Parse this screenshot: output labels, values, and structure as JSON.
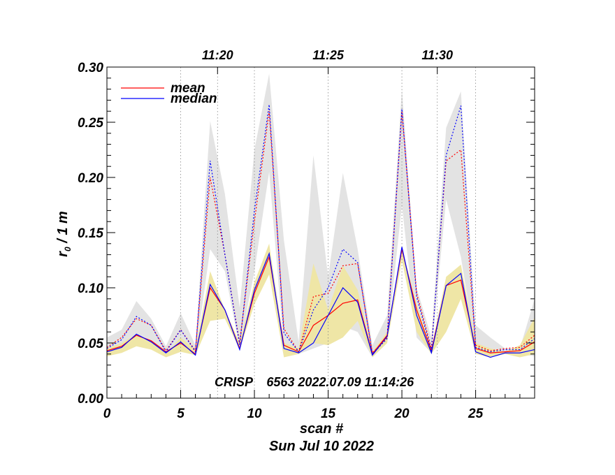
{
  "chart_data": {
    "type": "line",
    "xlabel": "scan #",
    "xlabel2": "Sun Jul 10 2022",
    "ylabel": "r",
    "ylabel_sub": "0",
    "ylabel_rest": " / 1 m",
    "annotation": "CRISP    6563 2022.07.09 11:14:26",
    "xlim": [
      0,
      29
    ],
    "ylim": [
      0,
      0.3
    ],
    "x_ticks": [
      0,
      5,
      10,
      15,
      20,
      25
    ],
    "x_tick_labels": [
      "0",
      "5",
      "10",
      "15",
      "20",
      "25"
    ],
    "y_ticks": [
      0,
      0.05,
      0.1,
      0.15,
      0.2,
      0.25,
      0.3
    ],
    "y_tick_labels": [
      "0.00",
      "0.05",
      "0.10",
      "0.15",
      "0.20",
      "0.25",
      "0.30"
    ],
    "time_ticks": [
      {
        "x": 7.5,
        "label": "11:20"
      },
      {
        "x": 15,
        "label": "11:25"
      },
      {
        "x": 22.4,
        "label": "11:30"
      }
    ],
    "vertical_guides": [
      5,
      7.5,
      10,
      15,
      20,
      22.4,
      25
    ],
    "legend": {
      "position": "top-left",
      "entries": [
        {
          "name": "mean",
          "color": "#ff0000"
        },
        {
          "name": "median",
          "color": "#0000ff"
        }
      ]
    },
    "x": [
      0,
      1,
      2,
      3,
      4,
      5,
      6,
      7,
      8,
      9,
      10,
      11,
      12,
      13,
      14,
      15,
      16,
      17,
      18,
      19,
      20,
      21,
      22,
      23,
      24,
      25,
      26,
      27,
      28,
      29
    ],
    "band_gray": {
      "color": "#e3e3e3",
      "upper": [
        0.055,
        0.062,
        0.088,
        0.072,
        0.047,
        0.077,
        0.048,
        0.251,
        0.185,
        0.082,
        0.225,
        0.294,
        0.143,
        0.051,
        0.22,
        0.11,
        0.204,
        0.135,
        0.048,
        0.075,
        0.28,
        0.1,
        0.055,
        0.245,
        0.278,
        0.066,
        0.055,
        0.045,
        0.045,
        0.09
      ],
      "lower": [
        0.04,
        0.042,
        0.052,
        0.048,
        0.037,
        0.042,
        0.04,
        0.135,
        0.115,
        0.045,
        0.115,
        0.205,
        0.045,
        0.04,
        0.045,
        0.05,
        0.065,
        0.06,
        0.037,
        0.05,
        0.175,
        0.055,
        0.041,
        0.18,
        0.128,
        0.045,
        0.04,
        0.04,
        0.04,
        0.038
      ]
    },
    "band_yellow": {
      "color": "#efe6a6",
      "upper": [
        0.045,
        0.05,
        0.058,
        0.052,
        0.04,
        0.055,
        0.044,
        0.115,
        0.08,
        0.05,
        0.105,
        0.14,
        0.05,
        0.045,
        0.122,
        0.08,
        0.12,
        0.098,
        0.042,
        0.06,
        0.136,
        0.085,
        0.045,
        0.11,
        0.121,
        0.05,
        0.045,
        0.042,
        0.048,
        0.073
      ],
      "lower": [
        0.038,
        0.041,
        0.047,
        0.044,
        0.037,
        0.042,
        0.039,
        0.07,
        0.072,
        0.044,
        0.085,
        0.112,
        0.037,
        0.04,
        0.05,
        0.048,
        0.055,
        0.07,
        0.037,
        0.05,
        0.125,
        0.06,
        0.04,
        0.06,
        0.09,
        0.04,
        0.037,
        0.04,
        0.037,
        0.04
      ]
    },
    "series": [
      {
        "name": "mean",
        "color": "#ff0000",
        "style": "solid",
        "values": [
          0.043,
          0.047,
          0.057,
          0.052,
          0.042,
          0.05,
          0.04,
          0.1,
          0.08,
          0.045,
          0.095,
          0.128,
          0.048,
          0.042,
          0.066,
          0.075,
          0.086,
          0.089,
          0.04,
          0.057,
          0.135,
          0.08,
          0.043,
          0.102,
          0.107,
          0.045,
          0.041,
          0.042,
          0.043,
          0.051
        ]
      },
      {
        "name": "median",
        "color": "#0000ff",
        "style": "solid",
        "values": [
          0.042,
          0.046,
          0.058,
          0.051,
          0.041,
          0.051,
          0.039,
          0.103,
          0.08,
          0.044,
          0.098,
          0.131,
          0.045,
          0.041,
          0.05,
          0.075,
          0.1,
          0.087,
          0.039,
          0.056,
          0.137,
          0.075,
          0.041,
          0.102,
          0.113,
          0.042,
          0.037,
          0.041,
          0.041,
          0.044
        ]
      },
      {
        "color": "#ff0000",
        "style": "dotted",
        "values": [
          0.046,
          0.055,
          0.072,
          0.066,
          0.043,
          0.062,
          0.043,
          0.2,
          0.13,
          0.05,
          0.16,
          0.26,
          0.063,
          0.042,
          0.092,
          0.095,
          0.12,
          0.122,
          0.041,
          0.055,
          0.26,
          0.095,
          0.045,
          0.215,
          0.225,
          0.048,
          0.043,
          0.045,
          0.046,
          0.057
        ]
      },
      {
        "color": "#0000ff",
        "style": "dotted",
        "values": [
          0.045,
          0.053,
          0.074,
          0.066,
          0.042,
          0.062,
          0.042,
          0.215,
          0.13,
          0.048,
          0.17,
          0.266,
          0.059,
          0.042,
          0.08,
          0.1,
          0.135,
          0.123,
          0.04,
          0.054,
          0.262,
          0.092,
          0.043,
          0.22,
          0.265,
          0.046,
          0.042,
          0.044,
          0.044,
          0.054
        ]
      }
    ]
  }
}
